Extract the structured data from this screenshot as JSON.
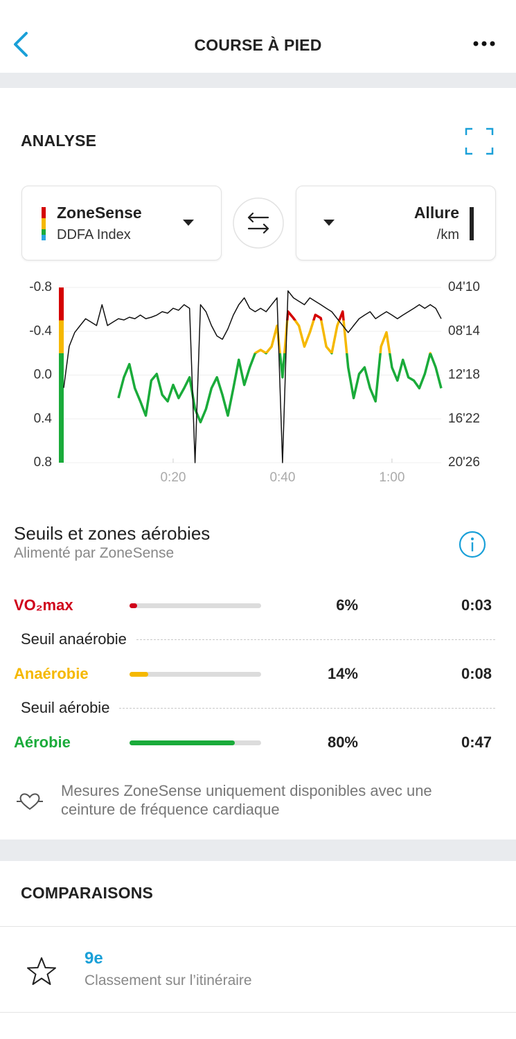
{
  "header": {
    "title": "COURSE À PIED"
  },
  "analysis": {
    "title": "ANALYSE",
    "left_selector": {
      "name": "ZoneSense",
      "sub": "DDFA Index"
    },
    "right_selector": {
      "name": "Allure",
      "sub": "/km"
    }
  },
  "chart_data": {
    "type": "line",
    "xlim": [
      0,
      69
    ],
    "xticks": [
      {
        "value": 20,
        "label": "0:20"
      },
      {
        "value": 40,
        "label": "0:40"
      },
      {
        "value": 60,
        "label": "1:00"
      }
    ],
    "ylim": [
      0.8,
      -0.8
    ],
    "yticks": [
      -0.8,
      -0.4,
      {
        "value": 0,
        "label": "0.0"
      },
      0.4,
      0.8
    ],
    "y2lim": [
      1226,
      250
    ],
    "y2ticks": [
      {
        "value": 250,
        "label": "04'10"
      },
      {
        "value": 494,
        "label": "08'14"
      },
      {
        "value": 738,
        "label": "12'18"
      },
      {
        "value": 982,
        "label": "16'22"
      },
      {
        "value": 1226,
        "label": "20'26"
      }
    ],
    "grid": true,
    "zone_limits": [
      -0.5,
      -0.2
    ],
    "zone_colors": [
      "#d40000",
      "#f5b800",
      "#1aab3a"
    ],
    "series": [
      {
        "x": [
          10,
          11,
          12,
          13,
          14,
          15,
          16,
          17,
          18,
          19,
          20,
          21,
          22,
          23,
          24,
          25,
          26,
          27,
          28,
          29,
          30,
          31,
          32,
          33,
          34,
          35,
          36,
          37,
          38,
          39,
          40,
          41,
          42,
          43,
          44,
          45,
          46,
          47,
          48,
          49,
          50,
          51,
          52,
          53,
          54,
          55,
          56,
          57,
          58,
          59,
          60,
          61,
          62,
          63,
          64,
          65,
          66,
          67,
          68,
          69
        ],
        "values": [
          0.21,
          0.02,
          -0.1,
          0.12,
          0.24,
          0.37,
          0.05,
          -0.01,
          0.18,
          0.24,
          0.09,
          0.21,
          0.12,
          0.02,
          0.31,
          0.43,
          0.31,
          0.12,
          0.02,
          0.18,
          0.37,
          0.12,
          -0.14,
          0.09,
          -0.07,
          -0.2,
          -0.23,
          -0.2,
          -0.26,
          -0.45,
          0.02,
          -0.58,
          -0.52,
          -0.45,
          -0.26,
          -0.39,
          -0.55,
          -0.52,
          -0.26,
          -0.2,
          -0.45,
          -0.58,
          -0.07,
          0.21,
          -0.01,
          -0.07,
          0.12,
          0.24,
          -0.26,
          -0.39,
          -0.07,
          0.05,
          -0.14,
          0.02,
          0.05,
          0.12,
          -0.01,
          -0.2,
          -0.07,
          0.12
        ]
      },
      {
        "x": [
          0,
          1,
          2,
          3,
          4,
          5,
          6,
          7,
          8,
          9,
          10,
          11,
          12,
          13,
          14,
          15,
          16,
          17,
          18,
          19,
          20,
          21,
          22,
          23,
          24,
          25,
          26,
          27,
          28,
          29,
          30,
          31,
          32,
          33,
          34,
          35,
          36,
          37,
          38,
          39,
          40,
          41,
          42,
          43,
          44,
          45,
          46,
          47,
          48,
          49,
          50,
          51,
          52,
          53,
          54,
          55,
          56,
          57,
          58,
          59,
          60,
          61,
          62,
          63,
          64,
          65,
          66,
          67,
          68,
          69
        ],
        "values": [
          809,
          578,
          501,
          462,
          424,
          443,
          462,
          346,
          462,
          443,
          424,
          431,
          416,
          424,
          404,
          424,
          416,
          404,
          385,
          393,
          366,
          377,
          346,
          366,
          1226,
          346,
          385,
          462,
          520,
          539,
          481,
          404,
          346,
          308,
          366,
          385,
          366,
          385,
          346,
          308,
          1226,
          269,
          308,
          327,
          346,
          308,
          327,
          346,
          366,
          385,
          424,
          462,
          501,
          462,
          424,
          404,
          385,
          424,
          404,
          385,
          404,
          424,
          404,
          385,
          366,
          346,
          366,
          346,
          366,
          424
        ],
        "color": "#111111",
        "axis": "y2"
      }
    ]
  },
  "zones": {
    "title": "Seuils et zones aérobies",
    "subtitle": "Alimenté par ZoneSense",
    "rows": [
      {
        "name": "VO₂max",
        "color": "#d0021b",
        "percent": 6,
        "percent_label": "6%",
        "time": "0:03"
      },
      {
        "name": "Anaérobie",
        "color": "#f5b800",
        "percent": 14,
        "percent_label": "14%",
        "time": "0:08"
      },
      {
        "name": "Aérobie",
        "color": "#1aab3a",
        "percent": 80,
        "percent_label": "80%",
        "time": "0:47"
      }
    ],
    "thresholds": [
      "Seuil anaérobie",
      "Seuil aérobie"
    ],
    "note": "Mesures ZoneSense uniquement disponibles avec une ceinture de fréquence cardiaque"
  },
  "comparisons": {
    "title": "COMPARAISONS",
    "rank": "9e",
    "rank_label": "Classement sur l’itinéraire"
  }
}
